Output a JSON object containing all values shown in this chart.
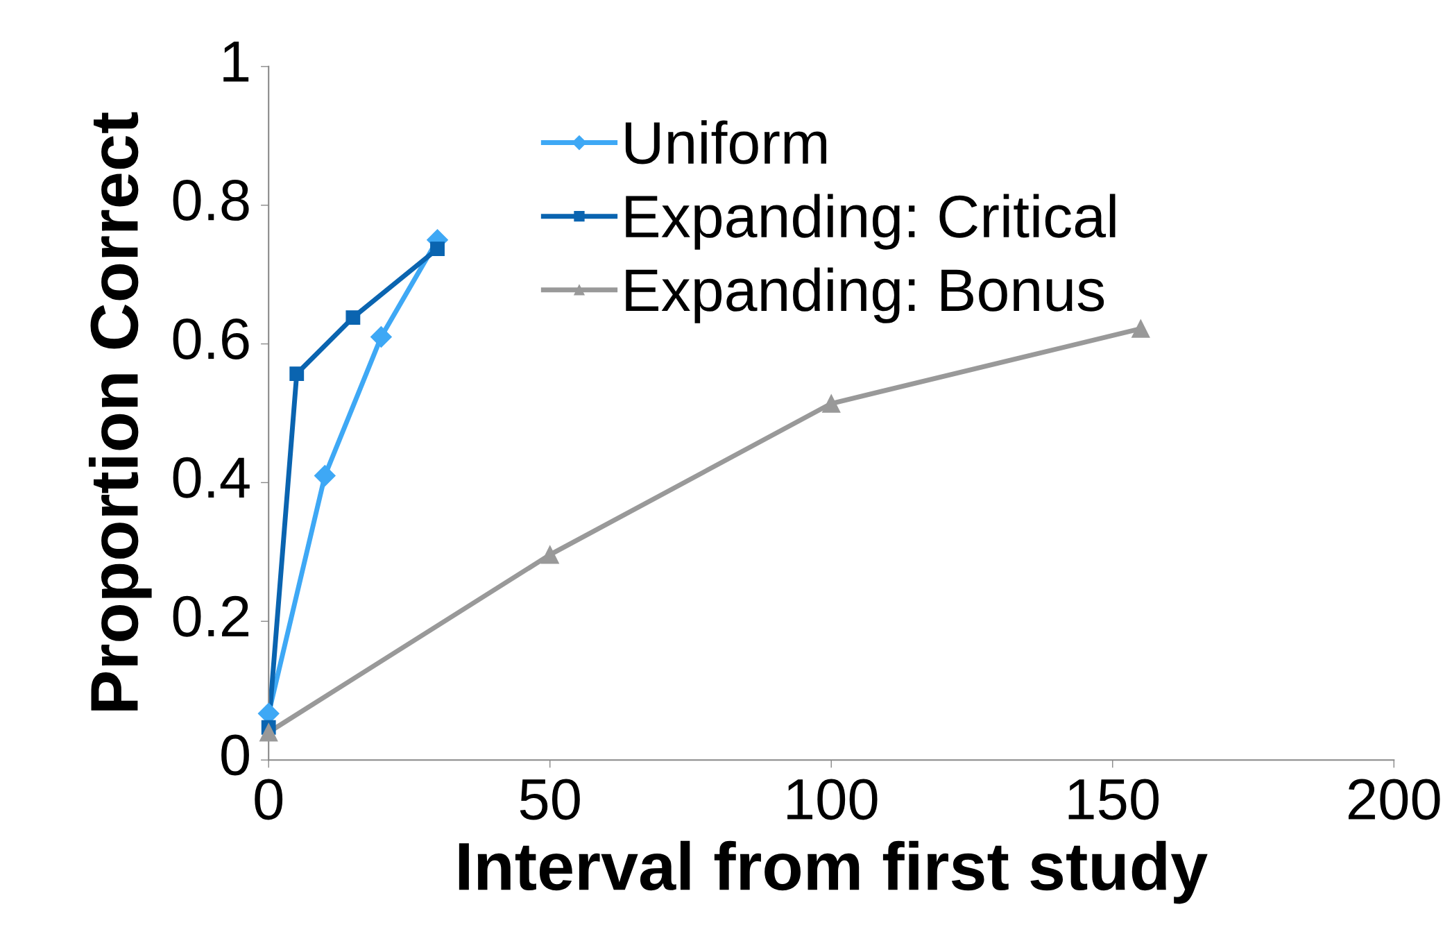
{
  "chart_data": {
    "type": "line",
    "xlabel": "Interval from first study",
    "ylabel": "Proportion Correct",
    "xlim": [
      0,
      200
    ],
    "xticks": [
      0,
      50,
      100,
      150,
      200
    ],
    "ylim": [
      0,
      1
    ],
    "yticks": [
      0,
      0.2,
      0.4,
      0.6,
      0.8,
      1
    ],
    "grid": false,
    "legend": "top",
    "line_style": "solid",
    "series": [
      {
        "name": "Uniform",
        "color": "#3ea8f5",
        "marker": "diamond",
        "x": [
          0,
          10,
          20,
          30
        ],
        "values": [
          0.067,
          0.41,
          0.61,
          0.75
        ]
      },
      {
        "name": "Expanding: Critical",
        "color": "#0a64b0",
        "marker": "square",
        "x": [
          0,
          5,
          15,
          30
        ],
        "values": [
          0.047,
          0.557,
          0.638,
          0.737
        ]
      },
      {
        "name": "Expanding: Bonus",
        "color": "#999999",
        "marker": "triangle",
        "x": [
          0,
          50,
          100,
          155
        ],
        "values": [
          0.04,
          0.296,
          0.514,
          0.622
        ]
      }
    ]
  }
}
